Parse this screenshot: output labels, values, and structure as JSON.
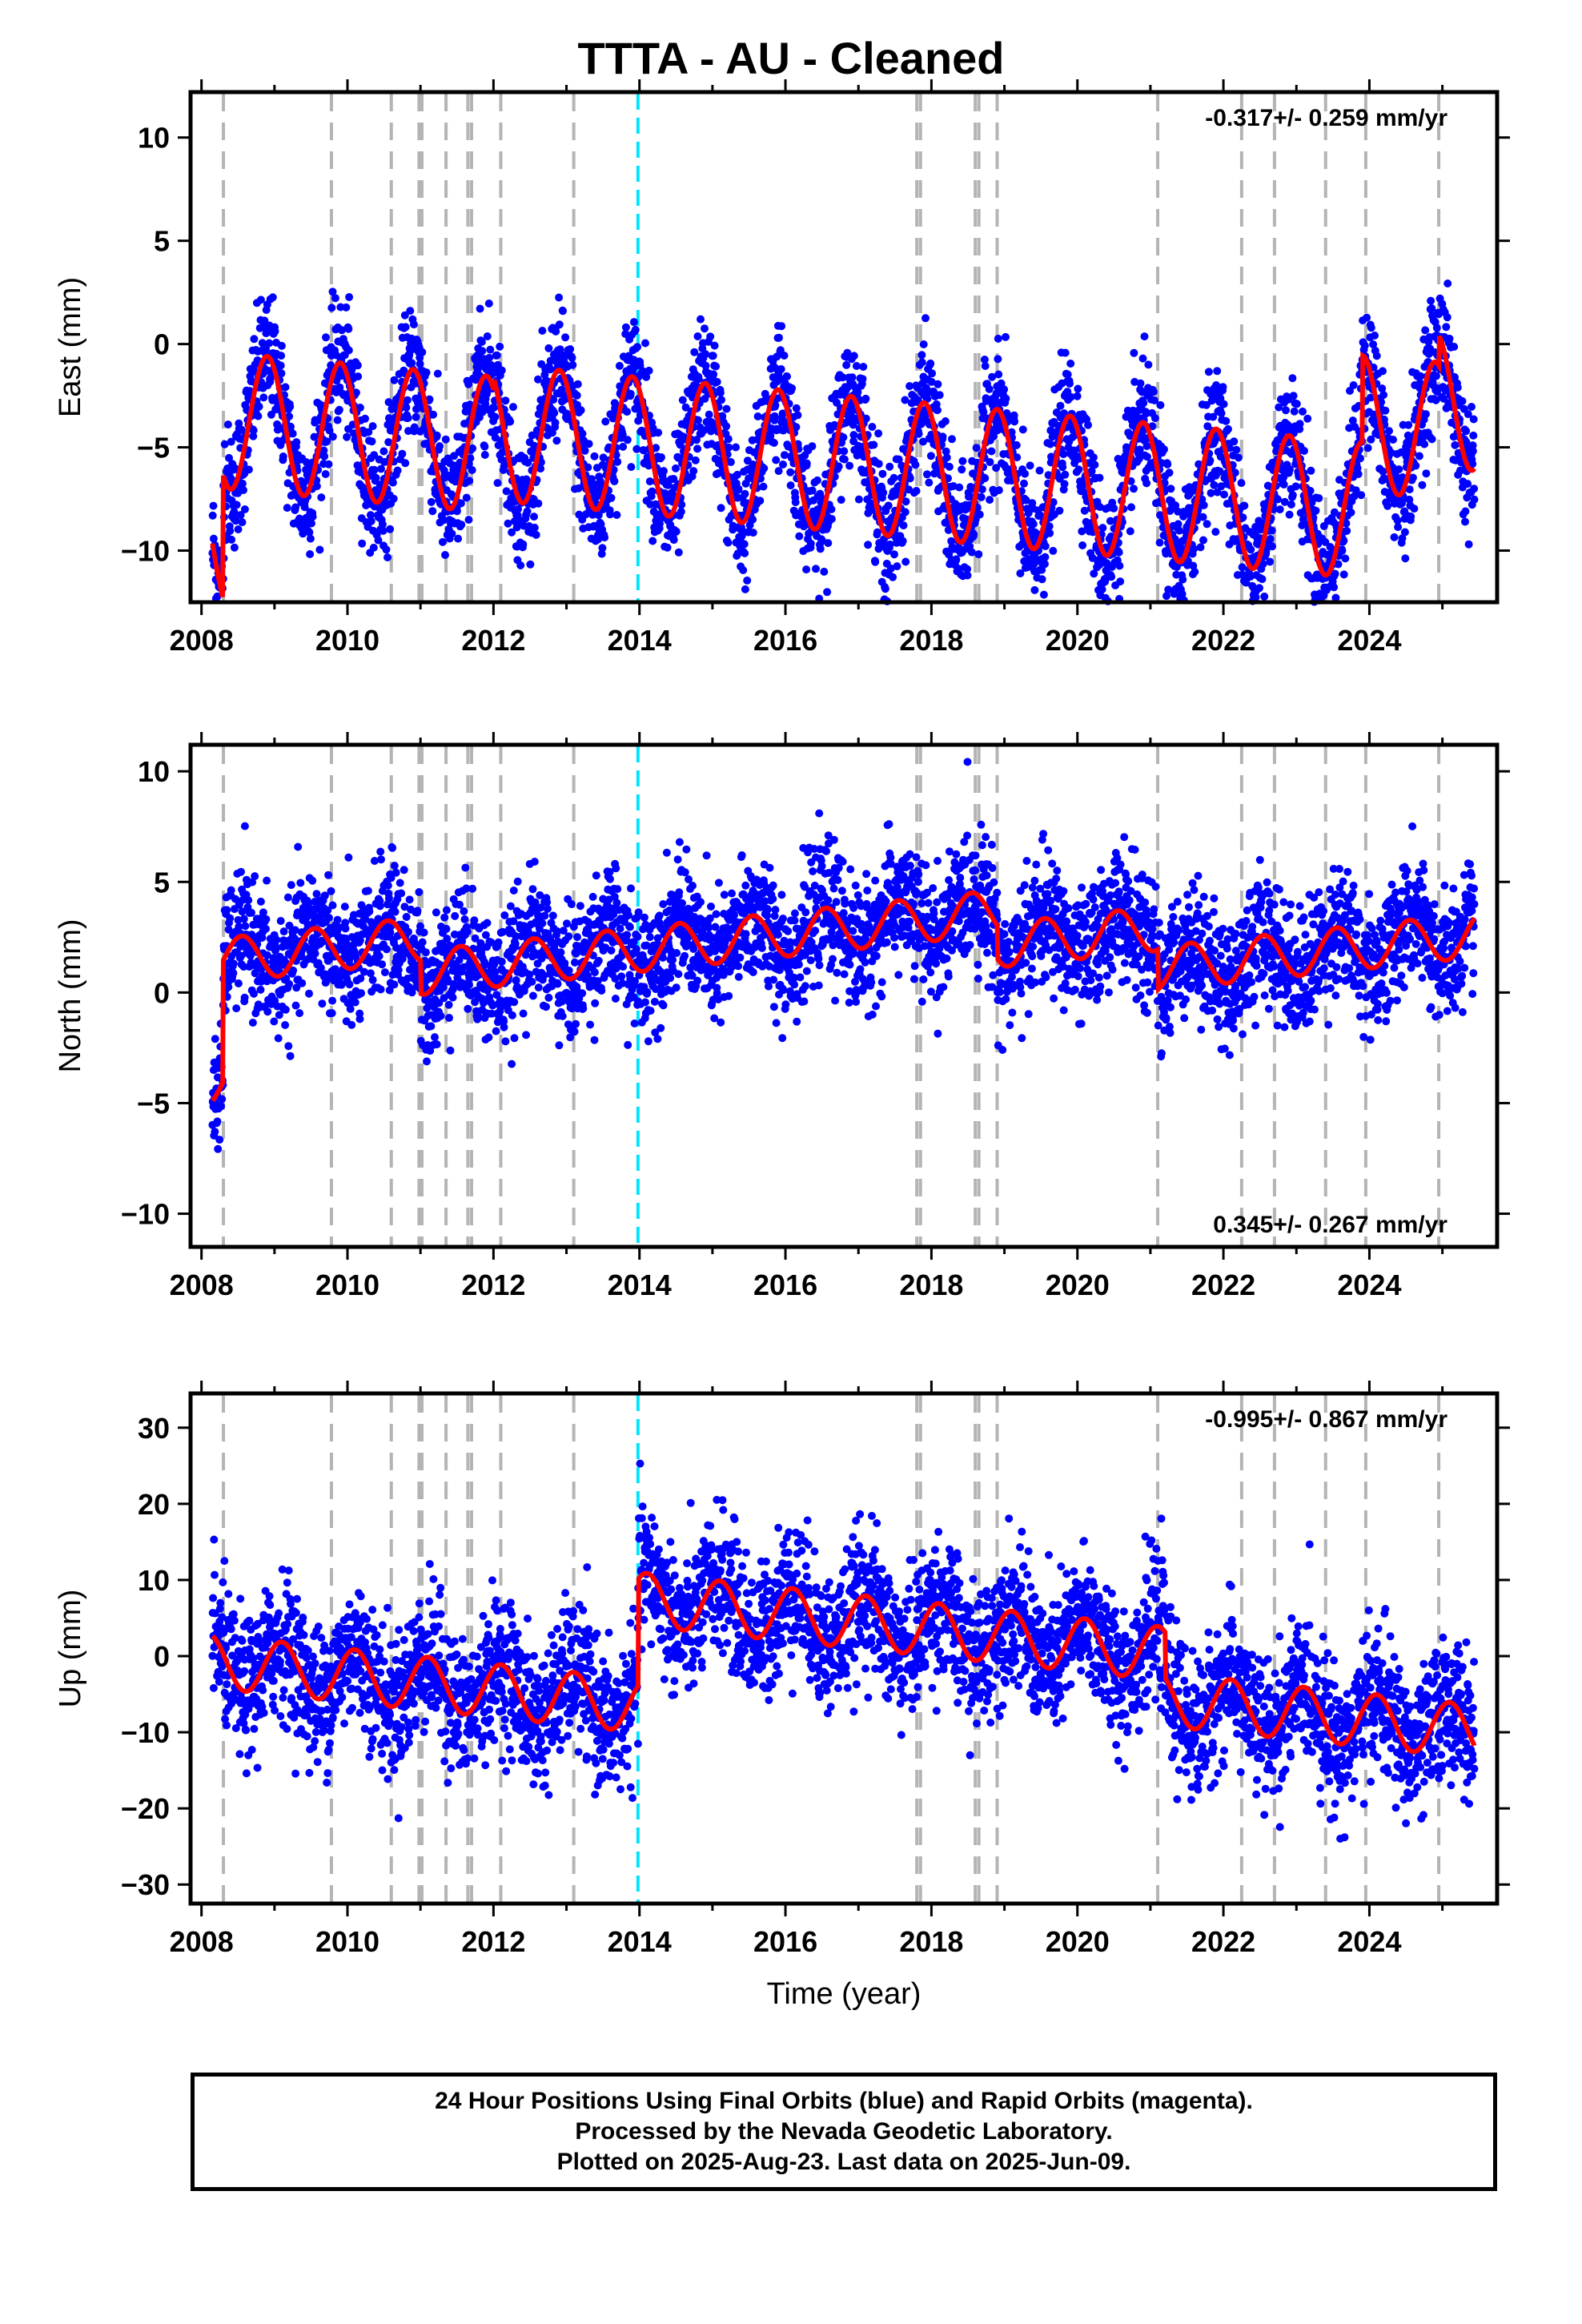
{
  "title": "TTTA  - AU - Cleaned",
  "footer": {
    "line1": "24 Hour Positions Using Final Orbits (blue) and Rapid Orbits (magenta).",
    "line2": "Processed by the Nevada Geodetic Laboratory.",
    "line3": "Plotted on 2025-Aug-23. Last data on 2025-Jun-09."
  },
  "colors": {
    "points": "#0000ff",
    "model": "#ff0000",
    "equipment_change": "#b4b4b4",
    "event": "#00e5ff"
  },
  "chart_data": [
    {
      "type": "scatter",
      "component": "east",
      "ylabel": "East (mm)",
      "xlabel": "",
      "xlim": [
        2007.85,
        2025.75
      ],
      "ylim": [
        -12.5,
        12.2
      ],
      "xticks": [
        2008,
        2010,
        2012,
        2014,
        2016,
        2018,
        2020,
        2022,
        2024
      ],
      "yticks": [
        -10,
        -5,
        0,
        5,
        10
      ],
      "rate_label": "-0.317+/- 0.259 mm/yr",
      "rate_label_position": "top-right",
      "model": {
        "mean": 0,
        "trend_mm_per_yr": -0.317,
        "annual_amplitude_mm": 3.3,
        "scatter_mm": 1.5,
        "annual_peak_year_fraction": 0.9,
        "offsets": [
          [
            2008.3,
            6.0
          ],
          [
            2012.0,
            0.6
          ],
          [
            2023.9,
            4.2
          ],
          [
            2024.95,
            1.5
          ]
        ]
      }
    },
    {
      "type": "scatter",
      "component": "north",
      "ylabel": "North (mm)",
      "xlabel": "",
      "xlim": [
        2007.85,
        2025.75
      ],
      "ylim": [
        -11.5,
        11.2
      ],
      "xticks": [
        2008,
        2010,
        2012,
        2014,
        2016,
        2018,
        2020,
        2022,
        2024
      ],
      "yticks": [
        -10,
        -5,
        0,
        5,
        10
      ],
      "rate_label": "0.345+/- 0.267 mm/yr",
      "rate_label_position": "bottom-right",
      "model": {
        "mean": -0.5,
        "trend_mm_per_yr": 0.345,
        "annual_amplitude_mm": 1.0,
        "scatter_mm": 1.4,
        "annual_peak_year_fraction": 0.55,
        "offsets": [
          [
            2008.3,
            5.5
          ],
          [
            2011.0,
            -1.5
          ],
          [
            2018.9,
            -1.5
          ],
          [
            2021.1,
            -1.8
          ]
        ]
      }
    },
    {
      "type": "scatter",
      "component": "up",
      "ylabel": "Up (mm)",
      "xlabel": "Time (year)",
      "xlim": [
        2007.85,
        2025.75
      ],
      "ylim": [
        -32.5,
        34.5
      ],
      "xticks": [
        2008,
        2010,
        2012,
        2014,
        2016,
        2018,
        2020,
        2022,
        2024
      ],
      "yticks": [
        -30,
        -20,
        -10,
        0,
        10,
        20,
        30
      ],
      "rate_label": "-0.995+/- 0.867 mm/yr",
      "rate_label_position": "top-right",
      "model": {
        "mean": -1,
        "trend_mm_per_yr": -0.995,
        "annual_amplitude_mm": 3.5,
        "scatter_mm": 4.5,
        "annual_peak_year_fraction": 0.1,
        "offsets": [
          [
            2013.98,
            14.0
          ],
          [
            2021.2,
            -6.0
          ]
        ]
      }
    }
  ],
  "events": {
    "equipment_change_years": [
      2008.3,
      2009.78,
      2010.6,
      2010.98,
      2011.02,
      2011.35,
      2011.65,
      2011.7,
      2012.1,
      2013.1,
      2017.8,
      2017.85,
      2018.6,
      2018.65,
      2018.9,
      2021.1,
      2022.25,
      2022.7,
      2023.4,
      2023.95,
      2024.95
    ],
    "event_years": [
      2013.98
    ]
  }
}
